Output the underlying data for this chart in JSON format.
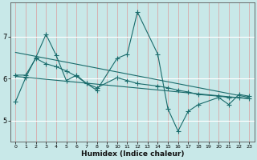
{
  "xlabel": "Humidex (Indice chaleur)",
  "xlim": [
    -0.5,
    23.5
  ],
  "ylim": [
    4.5,
    7.8
  ],
  "yticks": [
    5,
    6,
    7
  ],
  "xticks": [
    0,
    1,
    2,
    3,
    4,
    5,
    6,
    7,
    8,
    9,
    10,
    11,
    12,
    13,
    14,
    15,
    16,
    17,
    18,
    19,
    20,
    21,
    22,
    23
  ],
  "bg_color": "#c8e8e8",
  "line_color": "#1a6b6b",
  "red_vgrid_color": "#d8a8a8",
  "white_hgrid_color": "#e8f4f4",
  "s1_x": [
    0,
    1,
    2,
    3,
    4,
    5,
    6,
    7,
    8,
    10,
    11,
    12,
    14,
    15,
    16,
    17,
    18,
    20,
    21,
    22,
    23
  ],
  "s1_y": [
    5.45,
    6.02,
    6.5,
    7.05,
    6.55,
    5.95,
    6.08,
    5.88,
    5.72,
    6.48,
    6.58,
    7.58,
    6.58,
    5.28,
    4.75,
    5.22,
    5.38,
    5.55,
    5.38,
    5.62,
    5.58
  ],
  "s2_x": [
    0,
    1,
    2,
    3,
    4,
    5,
    6,
    7,
    8,
    10,
    11,
    12,
    14,
    15,
    16,
    17,
    18,
    20,
    21,
    22,
    23
  ],
  "s2_y": [
    6.08,
    6.08,
    6.48,
    6.35,
    6.28,
    6.18,
    6.05,
    5.88,
    5.78,
    6.02,
    5.95,
    5.88,
    5.82,
    5.78,
    5.72,
    5.68,
    5.62,
    5.58,
    5.55,
    5.55,
    5.52
  ],
  "trend1_x": [
    0,
    23
  ],
  "trend1_y": [
    6.62,
    5.55
  ],
  "trend2_x": [
    0,
    23
  ],
  "trend2_y": [
    6.05,
    5.52
  ]
}
